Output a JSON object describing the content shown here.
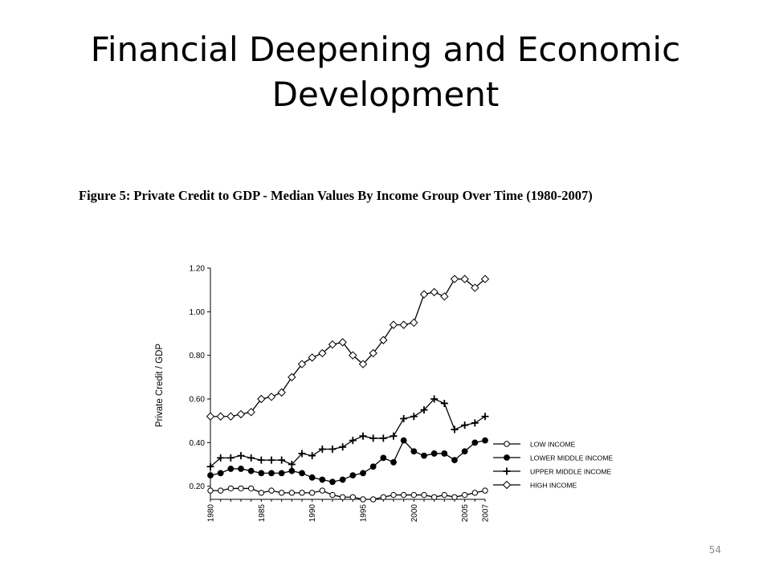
{
  "slide": {
    "title_line1": "Financial Deepening and Economic",
    "title_line2": "Development",
    "page_number": "54"
  },
  "chart_data": {
    "type": "line",
    "title": "Figure 5: Private Credit to GDP - Median Values By Income Group Over Time (1980-2007)",
    "xlabel": "",
    "ylabel": "Private Credit / GDP",
    "ylim": [
      0.14,
      1.2
    ],
    "yticks": [
      "0.20",
      "0.40",
      "0.60",
      "0.80",
      "1.00",
      "1.20"
    ],
    "xlim": [
      1980,
      2007
    ],
    "xticks": [
      "1980",
      "1985",
      "1990",
      "1995",
      "2000",
      "2005",
      "2007"
    ],
    "legend_position": "bottom-right",
    "categories": [
      1980,
      1981,
      1982,
      1983,
      1984,
      1985,
      1986,
      1987,
      1988,
      1989,
      1990,
      1991,
      1992,
      1993,
      1994,
      1995,
      1996,
      1997,
      1998,
      1999,
      2000,
      2001,
      2002,
      2003,
      2004,
      2005,
      2006,
      2007
    ],
    "series": [
      {
        "name": "LOW INCOME",
        "marker": "open-circle",
        "values": [
          0.18,
          0.18,
          0.19,
          0.19,
          0.19,
          0.17,
          0.18,
          0.17,
          0.17,
          0.17,
          0.17,
          0.18,
          0.16,
          0.15,
          0.15,
          0.14,
          0.14,
          0.15,
          0.16,
          0.16,
          0.16,
          0.16,
          0.15,
          0.16,
          0.15,
          0.16,
          0.17,
          0.18
        ]
      },
      {
        "name": "LOWER MIDDLE INCOME",
        "marker": "filled-circle",
        "values": [
          0.25,
          0.26,
          0.28,
          0.28,
          0.27,
          0.26,
          0.26,
          0.26,
          0.27,
          0.26,
          0.24,
          0.23,
          0.22,
          0.23,
          0.25,
          0.26,
          0.29,
          0.33,
          0.31,
          0.41,
          0.36,
          0.34,
          0.35,
          0.35,
          0.32,
          0.36,
          0.4,
          0.41
        ]
      },
      {
        "name": "UPPER MIDDLE INCOME",
        "marker": "plus",
        "values": [
          0.29,
          0.33,
          0.33,
          0.34,
          0.33,
          0.32,
          0.32,
          0.32,
          0.3,
          0.35,
          0.34,
          0.37,
          0.37,
          0.38,
          0.41,
          0.43,
          0.42,
          0.42,
          0.43,
          0.51,
          0.52,
          0.55,
          0.6,
          0.58,
          0.46,
          0.48,
          0.49,
          0.52
        ]
      },
      {
        "name": "HIGH INCOME",
        "marker": "open-diamond",
        "values": [
          0.52,
          0.52,
          0.52,
          0.53,
          0.54,
          0.6,
          0.61,
          0.63,
          0.7,
          0.76,
          0.79,
          0.81,
          0.85,
          0.86,
          0.8,
          0.76,
          0.81,
          0.87,
          0.94,
          0.94,
          0.95,
          1.08,
          1.09,
          1.07,
          1.15,
          1.15,
          1.11,
          1.15
        ]
      }
    ]
  }
}
